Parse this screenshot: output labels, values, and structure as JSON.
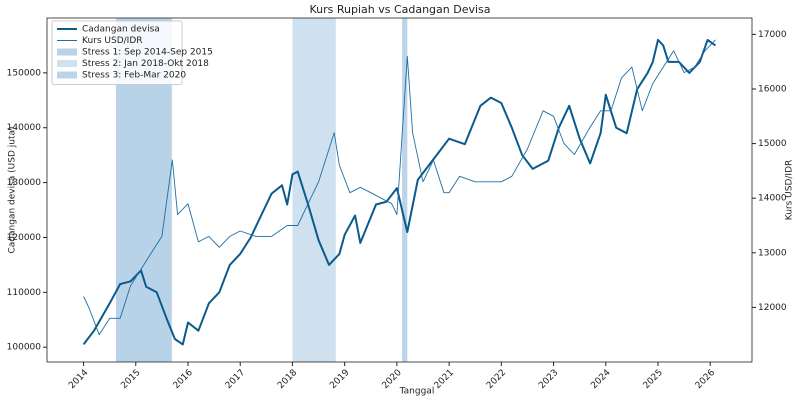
{
  "chart_data": {
    "type": "line",
    "title": "Kurs Rupiah vs Cadangan Devisa",
    "x_label": "Tanggal",
    "y_label": "Cadangan devisa (USD juta)",
    "y2_label": "Kurs USD/IDR",
    "xlim": [
      2013.3,
      2026.8
    ],
    "xticks": [
      2014,
      2015,
      2016,
      2017,
      2018,
      2019,
      2020,
      2021,
      2022,
      2023,
      2024,
      2025,
      2026
    ],
    "ylim": [
      97300,
      160000
    ],
    "yticks": [
      100000,
      110000,
      120000,
      130000,
      140000,
      150000
    ],
    "y2lim": [
      11000,
      17300
    ],
    "y2ticks": [
      12000,
      13000,
      14000,
      15000,
      16000,
      17000
    ],
    "legend": "upper left",
    "spans": [
      {
        "name": "Stress 1: Sep 2014-Sep 2015",
        "start": 2014.62,
        "end": 2015.69,
        "color": "#b8d2e8"
      },
      {
        "name": "Stress 2: Jan 2018-Okt 2018",
        "start": 2018.0,
        "end": 2018.83,
        "color": "#cfe0ef"
      },
      {
        "name": "Stress 3: Feb-Mar 2020",
        "start": 2020.1,
        "end": 2020.2,
        "color": "#bcd4e9"
      }
    ],
    "series": [
      {
        "name": "Cadangan devisa",
        "color": "#0b5a8c",
        "width": 2,
        "x": [
          2014.0,
          2014.2,
          2014.5,
          2014.7,
          2014.9,
          2015.1,
          2015.2,
          2015.4,
          2015.6,
          2015.75,
          2015.9,
          2016.0,
          2016.2,
          2016.4,
          2016.6,
          2016.8,
          2017.0,
          2017.2,
          2017.4,
          2017.6,
          2017.8,
          2017.9,
          2018.0,
          2018.1,
          2018.3,
          2018.5,
          2018.7,
          2018.9,
          2019.0,
          2019.2,
          2019.3,
          2019.6,
          2019.8,
          2020.0,
          2020.2,
          2020.4,
          2020.6,
          2020.8,
          2021.0,
          2021.3,
          2021.6,
          2021.8,
          2022.0,
          2022.2,
          2022.4,
          2022.6,
          2022.9,
          2023.1,
          2023.3,
          2023.5,
          2023.7,
          2023.9,
          2024.0,
          2024.2,
          2024.4,
          2024.6,
          2024.8,
          2024.9,
          2025.0,
          2025.1,
          2025.2,
          2025.4,
          2025.6,
          2025.8,
          2025.95,
          2026.1
        ],
        "values": [
          100500,
          103000,
          108000,
          111500,
          112000,
          114000,
          111000,
          110000,
          105000,
          101500,
          100500,
          104500,
          103000,
          108000,
          110000,
          115000,
          117000,
          120000,
          124000,
          128000,
          129500,
          126000,
          131500,
          132000,
          126000,
          119500,
          115000,
          117000,
          120500,
          124000,
          119000,
          126000,
          126500,
          129000,
          121000,
          130500,
          133000,
          135500,
          138000,
          137000,
          144000,
          145500,
          144500,
          140000,
          135000,
          132500,
          134000,
          140000,
          144000,
          138000,
          133500,
          139000,
          146000,
          140000,
          139000,
          147000,
          150000,
          152000,
          156000,
          155000,
          152000,
          152000,
          150000,
          152000,
          156000,
          155000
        ]
      },
      {
        "name": "Kurs USD/IDR",
        "color": "#1f6fa3",
        "width": 0.9,
        "axis": "y2",
        "x": [
          2014.0,
          2014.1,
          2014.3,
          2014.5,
          2014.7,
          2014.9,
          2015.1,
          2015.3,
          2015.5,
          2015.7,
          2015.8,
          2016.0,
          2016.2,
          2016.4,
          2016.6,
          2016.8,
          2017.0,
          2017.3,
          2017.6,
          2017.9,
          2018.1,
          2018.3,
          2018.5,
          2018.8,
          2018.9,
          2019.1,
          2019.3,
          2019.5,
          2019.7,
          2019.9,
          2020.0,
          2020.2,
          2020.3,
          2020.5,
          2020.7,
          2020.9,
          2021.0,
          2021.2,
          2021.5,
          2021.8,
          2022.0,
          2022.2,
          2022.5,
          2022.8,
          2023.0,
          2023.2,
          2023.4,
          2023.7,
          2023.9,
          2024.1,
          2024.3,
          2024.5,
          2024.7,
          2024.9,
          2025.1,
          2025.3,
          2025.5,
          2025.7,
          2025.9,
          2026.1
        ],
        "values": [
          12200,
          12000,
          11500,
          11800,
          11800,
          12400,
          12700,
          13000,
          13300,
          14700,
          13700,
          13900,
          13200,
          13300,
          13100,
          13300,
          13400,
          13300,
          13300,
          13500,
          13500,
          13900,
          14300,
          15200,
          14600,
          14100,
          14200,
          14100,
          14000,
          13900,
          13700,
          16600,
          15200,
          14300,
          14700,
          14100,
          14100,
          14400,
          14300,
          14300,
          14300,
          14400,
          14900,
          15600,
          15500,
          15000,
          14800,
          15300,
          15600,
          15600,
          16200,
          16400,
          15600,
          16100,
          16400,
          16700,
          16300,
          16400,
          16700,
          16900
        ]
      }
    ]
  }
}
